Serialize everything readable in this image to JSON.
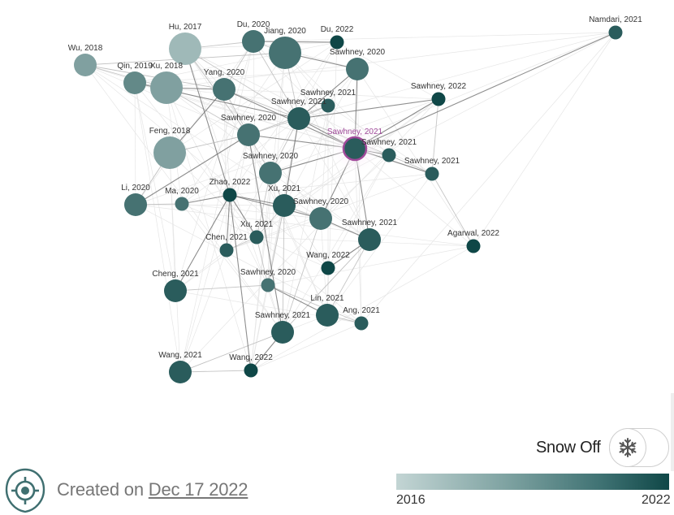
{
  "graph": {
    "colors": {
      "oldest": "#c3d5d4",
      "newest": "#0f4747",
      "edge": "#b8b8b8",
      "edge_strong": "#6a6a6a",
      "selected_ring": "#a04a9a"
    },
    "nodes": [
      {
        "id": "n1",
        "label": "Hu, 2017",
        "year": 2017,
        "size": "large"
      },
      {
        "id": "n2",
        "label": "Du, 2020",
        "year": 2020,
        "size": "medium"
      },
      {
        "id": "n3",
        "label": "Jiang, 2020",
        "year": 2020,
        "size": "large"
      },
      {
        "id": "n4",
        "label": "Du, 2022",
        "year": 2022,
        "size": "small"
      },
      {
        "id": "n5",
        "label": "Namdari, 2021",
        "year": 2021,
        "size": "small"
      },
      {
        "id": "n6",
        "label": "Wu, 2018",
        "year": 2018,
        "size": "medium"
      },
      {
        "id": "n7",
        "label": "Qin, 2019",
        "year": 2019,
        "size": "medium"
      },
      {
        "id": "n8",
        "label": "Xu, 2018",
        "year": 2018,
        "size": "large"
      },
      {
        "id": "n9",
        "label": "Yang, 2020",
        "year": 2020,
        "size": "medium"
      },
      {
        "id": "n10",
        "label": "Sawhney, 2020",
        "year": 2020,
        "size": "medium"
      },
      {
        "id": "n11",
        "label": "Sawhney, 2021",
        "year": 2021,
        "size": "small"
      },
      {
        "id": "n12",
        "label": "Sawhney, 2022",
        "year": 2022,
        "size": "small"
      },
      {
        "id": "n13",
        "label": "Sawhney, 2021",
        "year": 2021,
        "size": "medium"
      },
      {
        "id": "n14",
        "label": "Sawhney, 2020",
        "year": 2020,
        "size": "medium"
      },
      {
        "id": "n15",
        "label": "Sawhney, 2021",
        "year": 2021,
        "size": "medium",
        "selected": true
      },
      {
        "id": "n16",
        "label": "Sawhney, 2021",
        "year": 2021,
        "size": "small"
      },
      {
        "id": "n17",
        "label": "Feng, 2018",
        "year": 2018,
        "size": "large"
      },
      {
        "id": "n18",
        "label": "Sawhney, 2020",
        "year": 2020,
        "size": "medium"
      },
      {
        "id": "n19",
        "label": "Sawhney, 2021",
        "year": 2021,
        "size": "small"
      },
      {
        "id": "n20",
        "label": "Li, 2020",
        "year": 2020,
        "size": "medium"
      },
      {
        "id": "n21",
        "label": "Ma, 2020",
        "year": 2020,
        "size": "small"
      },
      {
        "id": "n22",
        "label": "Zhao, 2022",
        "year": 2022,
        "size": "small"
      },
      {
        "id": "n23",
        "label": "Xu, 2021",
        "year": 2021,
        "size": "medium"
      },
      {
        "id": "n24",
        "label": "Sawhney, 2020",
        "year": 2020,
        "size": "medium"
      },
      {
        "id": "n25",
        "label": "Xu, 2021",
        "year": 2021,
        "size": "small"
      },
      {
        "id": "n26",
        "label": "Sawhney, 2021",
        "year": 2021,
        "size": "medium"
      },
      {
        "id": "n27",
        "label": "Chen, 2021",
        "year": 2021,
        "size": "small"
      },
      {
        "id": "n28",
        "label": "Agarwal, 2022",
        "year": 2022,
        "size": "small"
      },
      {
        "id": "n29",
        "label": "Wang, 2022",
        "year": 2022,
        "size": "small"
      },
      {
        "id": "n30",
        "label": "Cheng, 2021",
        "year": 2021,
        "size": "medium"
      },
      {
        "id": "n31",
        "label": "Sawhney, 2020",
        "year": 2020,
        "size": "small"
      },
      {
        "id": "n32",
        "label": "Lin, 2021",
        "year": 2021,
        "size": "medium"
      },
      {
        "id": "n33",
        "label": "Ang, 2021",
        "year": 2021,
        "size": "small"
      },
      {
        "id": "n34",
        "label": "Sawhney, 2021",
        "year": 2021,
        "size": "medium"
      },
      {
        "id": "n35",
        "label": "Wang, 2021",
        "year": 2021,
        "size": "medium"
      },
      {
        "id": "n36",
        "label": "Wang, 2022",
        "year": 2022,
        "size": "small"
      }
    ],
    "edges": [
      [
        "n2",
        "n4"
      ],
      [
        "n2",
        "n3"
      ],
      [
        "n2",
        "n13"
      ],
      [
        "n3",
        "n13"
      ],
      [
        "n3",
        "n10"
      ],
      [
        "n6",
        "n8"
      ],
      [
        "n6",
        "n9"
      ],
      [
        "n7",
        "n8"
      ],
      [
        "n8",
        "n9"
      ],
      [
        "n8",
        "n14"
      ],
      [
        "n9",
        "n14"
      ],
      [
        "n9",
        "n13"
      ],
      [
        "n9",
        "n15"
      ],
      [
        "n1",
        "n14"
      ],
      [
        "n1",
        "n13"
      ],
      [
        "n1",
        "n22"
      ],
      [
        "n10",
        "n13"
      ],
      [
        "n10",
        "n15"
      ],
      [
        "n11",
        "n13"
      ],
      [
        "n11",
        "n14"
      ],
      [
        "n12",
        "n13"
      ],
      [
        "n12",
        "n15"
      ],
      [
        "n12",
        "n19"
      ],
      [
        "n5",
        "n15"
      ],
      [
        "n13",
        "n15"
      ],
      [
        "n13",
        "n16"
      ],
      [
        "n13",
        "n14"
      ],
      [
        "n13",
        "n18"
      ],
      [
        "n13",
        "n23"
      ],
      [
        "n14",
        "n18"
      ],
      [
        "n14",
        "n15"
      ],
      [
        "n14",
        "n17"
      ],
      [
        "n14",
        "n20"
      ],
      [
        "n15",
        "n16"
      ],
      [
        "n15",
        "n19"
      ],
      [
        "n15",
        "n24"
      ],
      [
        "n15",
        "n26"
      ],
      [
        "n15",
        "n18"
      ],
      [
        "n16",
        "n19"
      ],
      [
        "n17",
        "n20"
      ],
      [
        "n17",
        "n9"
      ],
      [
        "n18",
        "n23"
      ],
      [
        "n18",
        "n25"
      ],
      [
        "n20",
        "n21"
      ],
      [
        "n21",
        "n22"
      ],
      [
        "n22",
        "n23"
      ],
      [
        "n22",
        "n25"
      ],
      [
        "n22",
        "n24"
      ],
      [
        "n22",
        "n30"
      ],
      [
        "n23",
        "n24"
      ],
      [
        "n23",
        "n25"
      ],
      [
        "n23",
        "n31"
      ],
      [
        "n24",
        "n26"
      ],
      [
        "n24",
        "n34"
      ],
      [
        "n25",
        "n27"
      ],
      [
        "n25",
        "n31"
      ],
      [
        "n26",
        "n29"
      ],
      [
        "n26",
        "n34"
      ],
      [
        "n27",
        "n22"
      ],
      [
        "n30",
        "n31"
      ],
      [
        "n31",
        "n32"
      ],
      [
        "n32",
        "n33"
      ],
      [
        "n31",
        "n33"
      ],
      [
        "n34",
        "n35"
      ],
      [
        "n34",
        "n36"
      ],
      [
        "n35",
        "n36"
      ],
      [
        "n19",
        "n28"
      ],
      [
        "n26",
        "n32"
      ],
      [
        "n14",
        "n34"
      ],
      [
        "n23",
        "n34"
      ],
      [
        "n22",
        "n36"
      ],
      [
        "n2",
        "n9"
      ],
      [
        "n7",
        "n13"
      ],
      [
        "n6",
        "n3"
      ],
      [
        "n1",
        "n2"
      ]
    ]
  },
  "toggle": {
    "label": "Snow Off",
    "icon": "snowflake-icon",
    "state": "off"
  },
  "footer": {
    "created_prefix": "Created on",
    "created_date": "Dec 17 2022",
    "logo_icon": "target-logo-icon"
  },
  "legend": {
    "min_label": "2016",
    "max_label": "2022"
  }
}
